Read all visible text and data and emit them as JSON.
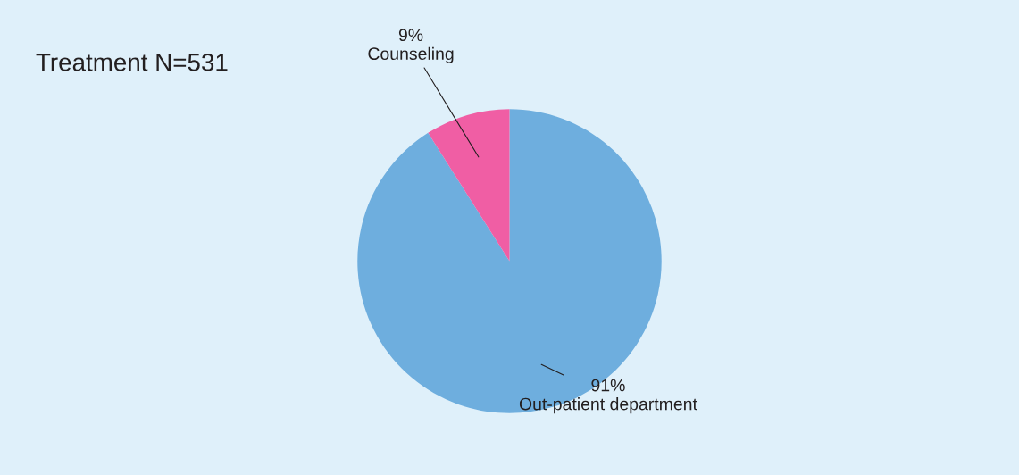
{
  "chart_data": {
    "type": "pie",
    "title": "Treatment N=531",
    "categories": [
      "Out-patient department",
      "Counseling"
    ],
    "values": [
      91,
      9
    ],
    "value_labels": [
      "91%",
      "9%"
    ],
    "colors": [
      "#6eaede",
      "#f05ea4"
    ]
  }
}
